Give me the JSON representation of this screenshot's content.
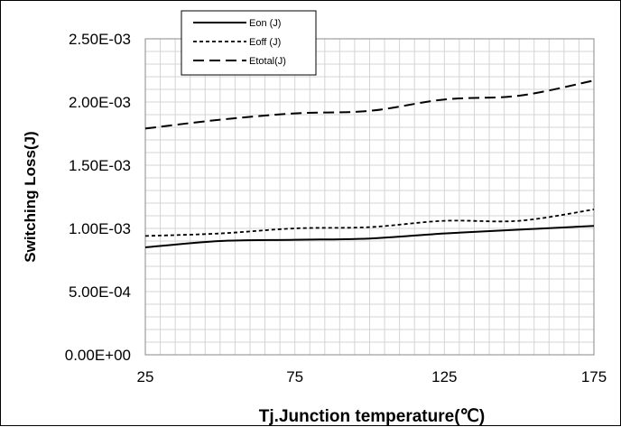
{
  "chart_data": {
    "type": "line",
    "title": "",
    "xlabel": "Tj.Junction temperature(℃)",
    "ylabel": "Switching Loss(J)",
    "xlim": [
      25,
      175
    ],
    "ylim": [
      0,
      0.0025
    ],
    "x_ticks": [
      25,
      75,
      125,
      175
    ],
    "x_tick_labels": [
      "25",
      "75",
      "125",
      "175"
    ],
    "y_ticks": [
      0,
      0.0005,
      0.001,
      0.0015,
      0.002,
      0.0025
    ],
    "y_tick_labels": [
      "0.00E+00",
      "5.00E-04",
      "1.00E-03",
      "1.50E-03",
      "2.00E-03",
      "2.50E-03"
    ],
    "grid": true,
    "legend_position": "top-left",
    "series": [
      {
        "name": "Eon (J)",
        "style": "solid",
        "x": [
          25,
          50,
          75,
          100,
          125,
          150,
          175
        ],
        "y": [
          0.00085,
          0.0009,
          0.00091,
          0.00092,
          0.00096,
          0.00099,
          0.00102
        ]
      },
      {
        "name": "Eoff (J)",
        "style": "dotted",
        "x": [
          25,
          50,
          75,
          100,
          125,
          150,
          175
        ],
        "y": [
          0.00094,
          0.00096,
          0.001,
          0.00101,
          0.00106,
          0.00106,
          0.00115
        ]
      },
      {
        "name": "Etotal(J)",
        "style": "dashed",
        "x": [
          25,
          50,
          75,
          100,
          125,
          150,
          175
        ],
        "y": [
          0.00179,
          0.00186,
          0.00191,
          0.00193,
          0.00202,
          0.00205,
          0.00217
        ]
      }
    ],
    "colors": {
      "line": "#000000",
      "grid": "#d4d4d4",
      "axis": "#888888"
    }
  }
}
